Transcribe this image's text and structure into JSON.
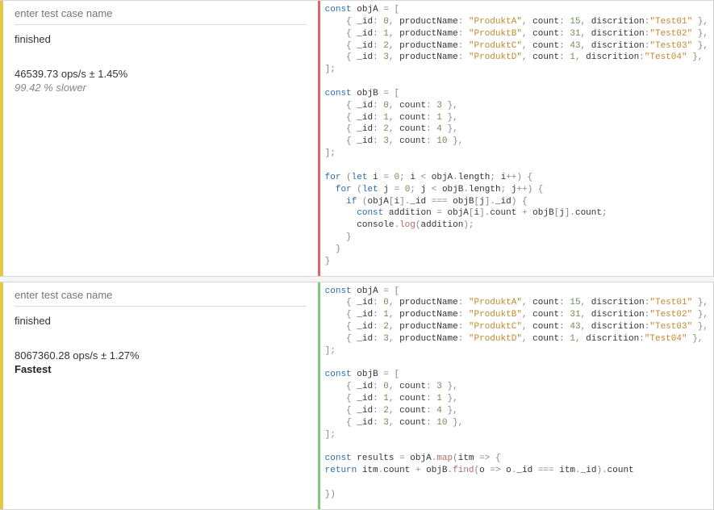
{
  "colors": {
    "accent_yellow": "#e2c948",
    "border_red": "#e06666",
    "border_green": "#7fc97f",
    "bg": "#ffffff",
    "panel_bg": "#f5f5f5"
  },
  "testcases": [
    {
      "placeholder": "enter test case name",
      "name_value": "",
      "status": "finished",
      "ops_line": "46539.73 ops/s ± 1.45%",
      "sub_line": "99.42 % slower",
      "result_type": "slower",
      "border_side": "red",
      "code": {
        "objA": [
          {
            "_id": 0,
            "productName": "ProduktA",
            "count": 15,
            "discrition": "Test01"
          },
          {
            "_id": 1,
            "productName": "ProduktB",
            "count": 31,
            "discrition": "Test02"
          },
          {
            "_id": 2,
            "productName": "ProduktC",
            "count": 43,
            "discrition": "Test03"
          },
          {
            "_id": 3,
            "productName": "ProduktD",
            "count": 1,
            "discrition": "Test04"
          }
        ],
        "objB": [
          {
            "_id": 0,
            "count": 3
          },
          {
            "_id": 1,
            "count": 1
          },
          {
            "_id": 2,
            "count": 4
          },
          {
            "_id": 3,
            "count": 10
          }
        ],
        "body": "nested_for"
      }
    },
    {
      "placeholder": "enter test case name",
      "name_value": "",
      "status": "finished",
      "ops_line": "8067360.28 ops/s ± 1.27%",
      "sub_line": "Fastest",
      "result_type": "fastest",
      "border_side": "green",
      "code": {
        "objA": [
          {
            "_id": 0,
            "productName": "ProduktA",
            "count": 15,
            "discrition": "Test01"
          },
          {
            "_id": 1,
            "productName": "ProduktB",
            "count": 31,
            "discrition": "Test02"
          },
          {
            "_id": 2,
            "productName": "ProduktC",
            "count": 43,
            "discrition": "Test03"
          },
          {
            "_id": 3,
            "productName": "ProduktD",
            "count": 1,
            "discrition": "Test04"
          }
        ],
        "objB": [
          {
            "_id": 0,
            "count": 3
          },
          {
            "_id": 1,
            "count": 1
          },
          {
            "_id": 2,
            "count": 4
          },
          {
            "_id": 3,
            "count": 10
          }
        ],
        "body": "map_find"
      }
    }
  ]
}
